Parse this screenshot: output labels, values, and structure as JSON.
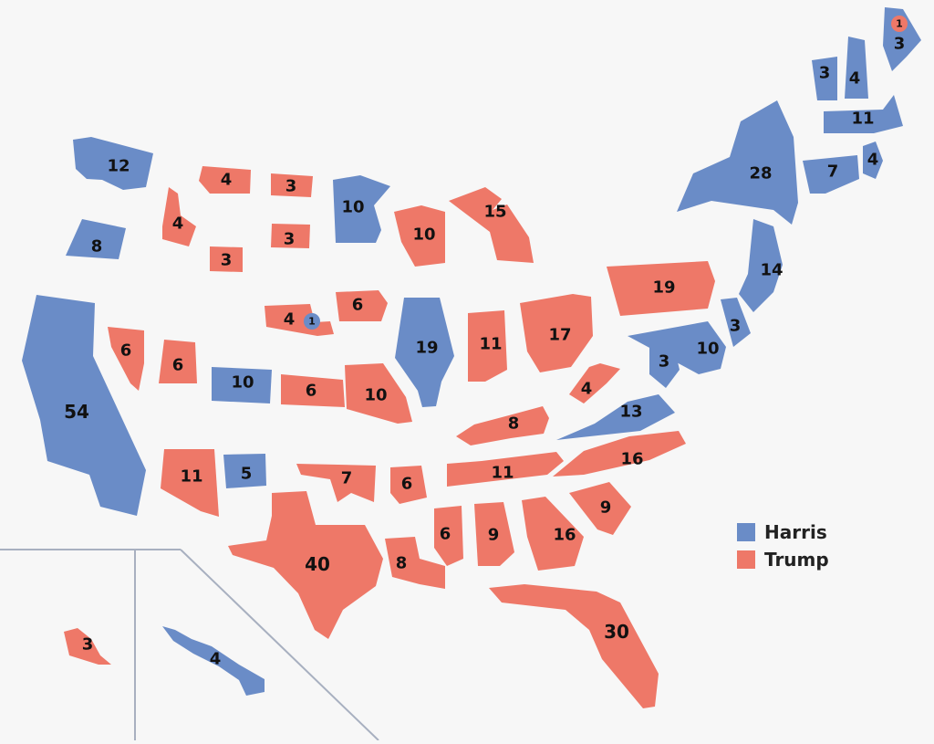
{
  "colors": {
    "harris": "#6a8cc7",
    "trump": "#ee7868",
    "background": "#f7f7f7",
    "inset_border": "#a8b0c0"
  },
  "legend": [
    {
      "label": "Harris",
      "party": "harris"
    },
    {
      "label": "Trump",
      "party": "trump"
    }
  ],
  "states": [
    {
      "id": "WA",
      "party": "harris",
      "votes": "12"
    },
    {
      "id": "OR",
      "party": "harris",
      "votes": "8"
    },
    {
      "id": "CA",
      "party": "harris",
      "votes": "54"
    },
    {
      "id": "ID",
      "party": "trump",
      "votes": "4"
    },
    {
      "id": "MT",
      "party": "trump",
      "votes": "4"
    },
    {
      "id": "WY",
      "party": "trump",
      "votes": "3"
    },
    {
      "id": "NV",
      "party": "trump",
      "votes": "6"
    },
    {
      "id": "UT",
      "party": "trump",
      "votes": "6"
    },
    {
      "id": "CO",
      "party": "harris",
      "votes": "10"
    },
    {
      "id": "AZ",
      "party": "trump",
      "votes": "11"
    },
    {
      "id": "NM",
      "party": "harris",
      "votes": "5"
    },
    {
      "id": "ND",
      "party": "trump",
      "votes": "3"
    },
    {
      "id": "SD",
      "party": "trump",
      "votes": "3"
    },
    {
      "id": "NE",
      "party": "trump",
      "votes": "4"
    },
    {
      "id": "NE-2",
      "party": "harris",
      "votes": "1"
    },
    {
      "id": "KS",
      "party": "trump",
      "votes": "6"
    },
    {
      "id": "OK",
      "party": "trump",
      "votes": "7"
    },
    {
      "id": "TX",
      "party": "trump",
      "votes": "40"
    },
    {
      "id": "MN",
      "party": "harris",
      "votes": "10"
    },
    {
      "id": "IA",
      "party": "trump",
      "votes": "6"
    },
    {
      "id": "MO",
      "party": "trump",
      "votes": "10"
    },
    {
      "id": "AR",
      "party": "trump",
      "votes": "6"
    },
    {
      "id": "LA",
      "party": "trump",
      "votes": "8"
    },
    {
      "id": "WI",
      "party": "trump",
      "votes": "10"
    },
    {
      "id": "IL",
      "party": "harris",
      "votes": "19"
    },
    {
      "id": "MI",
      "party": "trump",
      "votes": "15"
    },
    {
      "id": "IN",
      "party": "trump",
      "votes": "11"
    },
    {
      "id": "OH",
      "party": "trump",
      "votes": "17"
    },
    {
      "id": "KY",
      "party": "trump",
      "votes": "8"
    },
    {
      "id": "TN",
      "party": "trump",
      "votes": "11"
    },
    {
      "id": "MS",
      "party": "trump",
      "votes": "6"
    },
    {
      "id": "AL",
      "party": "trump",
      "votes": "9"
    },
    {
      "id": "GA",
      "party": "trump",
      "votes": "16"
    },
    {
      "id": "FL",
      "party": "trump",
      "votes": "30"
    },
    {
      "id": "SC",
      "party": "trump",
      "votes": "9"
    },
    {
      "id": "NC",
      "party": "trump",
      "votes": "16"
    },
    {
      "id": "VA",
      "party": "harris",
      "votes": "13"
    },
    {
      "id": "WV",
      "party": "trump",
      "votes": "4"
    },
    {
      "id": "PA",
      "party": "trump",
      "votes": "19"
    },
    {
      "id": "NY",
      "party": "harris",
      "votes": "28"
    },
    {
      "id": "NJ",
      "party": "harris",
      "votes": "14"
    },
    {
      "id": "DE",
      "party": "harris",
      "votes": "3"
    },
    {
      "id": "MD",
      "party": "harris",
      "votes": "10"
    },
    {
      "id": "DC",
      "party": "harris",
      "votes": "3"
    },
    {
      "id": "CT",
      "party": "harris",
      "votes": "7"
    },
    {
      "id": "RI",
      "party": "harris",
      "votes": "4"
    },
    {
      "id": "MA",
      "party": "harris",
      "votes": "11"
    },
    {
      "id": "VT",
      "party": "harris",
      "votes": "3"
    },
    {
      "id": "NH",
      "party": "harris",
      "votes": "4"
    },
    {
      "id": "ME",
      "party": "harris",
      "votes": "3"
    },
    {
      "id": "ME-2",
      "party": "trump",
      "votes": "1"
    },
    {
      "id": "AK",
      "party": "trump",
      "votes": "3"
    },
    {
      "id": "HI",
      "party": "harris",
      "votes": "4"
    }
  ]
}
